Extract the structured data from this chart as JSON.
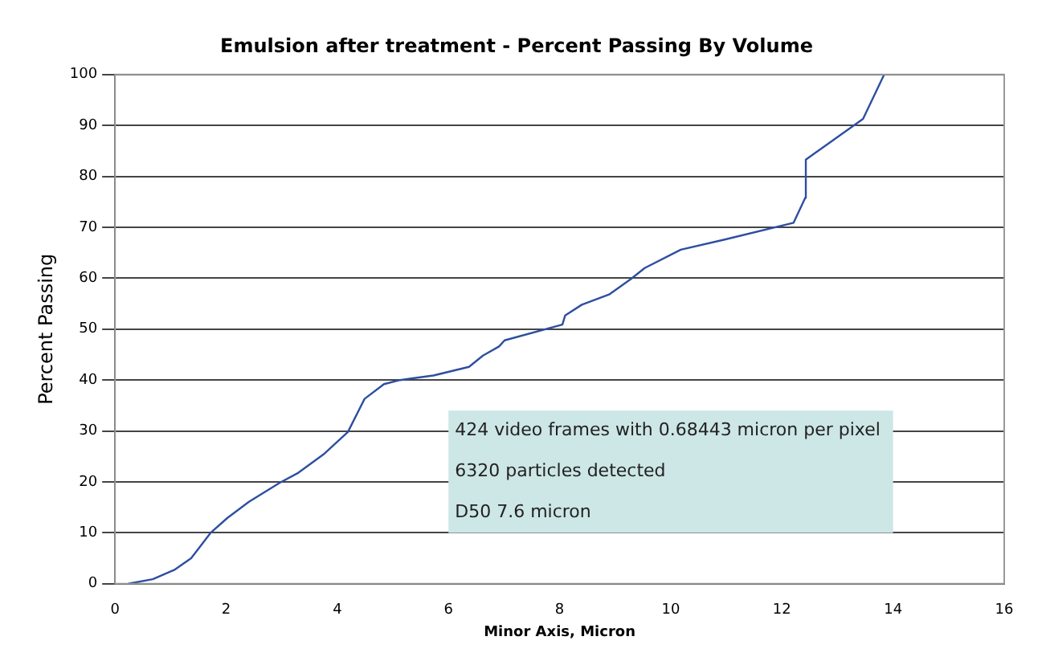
{
  "chart_data": {
    "type": "line",
    "title": "Emulsion after treatment - Percent Passing By Volume",
    "xlabel": "Minor Axis, Micron",
    "ylabel": "Percent Passing",
    "x": [
      0.24,
      0.68,
      1.08,
      1.37,
      1.72,
      2.02,
      2.41,
      2.96,
      3.3,
      3.75,
      4.19,
      4.49,
      4.84,
      5.13,
      5.73,
      6.37,
      6.62,
      6.91,
      7.01,
      8.05,
      8.1,
      8.4,
      8.89,
      9.29,
      9.53,
      10.18,
      10.97,
      12.21,
      12.42,
      12.43,
      13.46,
      13.84
    ],
    "series": [
      {
        "color": "#2e4ea0",
        "values": [
          0,
          0.9,
          2.8,
          5,
          10,
          12.9,
          16.1,
          19.8,
          21.8,
          25.4,
          29.8,
          36.3,
          39.2,
          40,
          40.9,
          42.6,
          44.8,
          46.6,
          47.8,
          50.9,
          52.7,
          54.8,
          56.8,
          59.9,
          62,
          65.6,
          67.6,
          70.9,
          75.8,
          83.3,
          91.3,
          100
        ]
      }
    ],
    "xlim": [
      0,
      16
    ],
    "xticks": [
      0,
      2,
      4,
      6,
      8,
      10,
      12,
      14,
      16
    ],
    "ylim": [
      0,
      100
    ],
    "yticks": [
      0,
      10,
      20,
      30,
      40,
      50,
      60,
      70,
      80,
      90,
      100
    ],
    "grid": "y",
    "legend": false,
    "marker": "none",
    "line_style": "solid",
    "annotations": [
      "424 video frames with 0.68443 micron per pixel",
      "6320 particles detected",
      "D50 7.6 micron"
    ]
  }
}
